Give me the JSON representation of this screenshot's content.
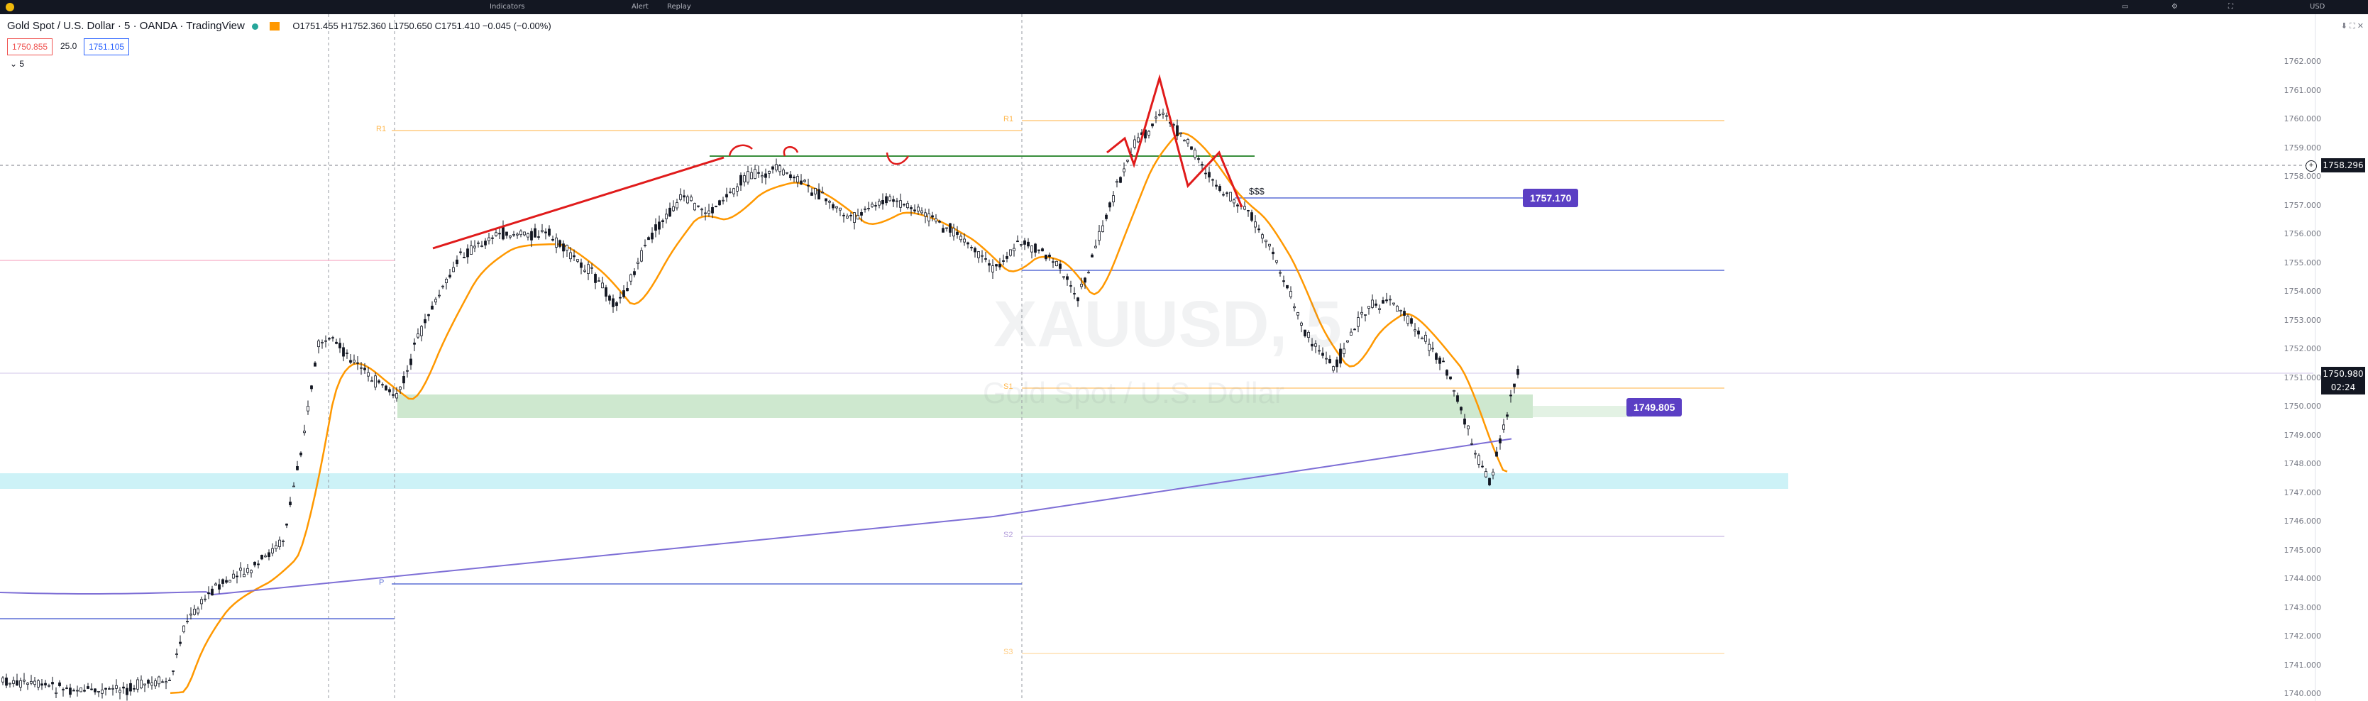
{
  "header": {
    "symbol_title": "Gold Spot / U.S. Dollar · 5 · OANDA · TradingView",
    "ohlc": "O1751.455 H1752.360 L1750.650 C1751.410 −0.045 (−0.00%)",
    "bid": "1750.855",
    "spread": "25.0",
    "ask": "1751.105",
    "indicator_toggle": "5"
  },
  "topbar": {
    "items": [
      "Indicators",
      "Alert",
      "Replay"
    ],
    "right_label": "USD"
  },
  "watermark": {
    "ticker": "XAUUSD, 5",
    "description": "Gold Spot / U.S. Dollar"
  },
  "annotations": {
    "stop_marker": "$$$",
    "level_upper_label": "1757.170",
    "level_middle_label": "1749.805"
  },
  "pivots": {
    "left_r1": "R1",
    "left_p": "P",
    "right_r1": "R1",
    "right_s1": "S1",
    "right_s2": "S2",
    "right_s3": "S3"
  },
  "price_axis": {
    "ticks": [
      "1762.000",
      "1761.000",
      "1760.000",
      "1759.000",
      "1758.000",
      "1757.000",
      "1756.000",
      "1755.000",
      "1754.000",
      "1753.000",
      "1752.000",
      "1751.000",
      "1750.000",
      "1749.000",
      "1748.000",
      "1747.000",
      "1746.000",
      "1745.000",
      "1744.000",
      "1743.000",
      "1742.000",
      "1741.000",
      "1740.000"
    ],
    "crosshair_price": "1758.296",
    "last_price": "1750.980",
    "countdown": "02:24"
  },
  "colors": {
    "candle": "#131722",
    "ema_orange": "#ff9800",
    "long_ma_purple": "#7e6fd6",
    "trend_red": "#e01b1b",
    "demand_green": "#a5d6a7",
    "cyan_zone": "#b2ebf2",
    "label_purple": "#5b3fc4",
    "pivot_blue": "#5b6fd6"
  },
  "icons": [
    "menu-icon",
    "plus-icon",
    "zoom-icon",
    "crosshair-icon",
    "maximize-icon",
    "close-icon",
    "camera-icon",
    "settings-icon",
    "fullscreen-icon"
  ]
}
